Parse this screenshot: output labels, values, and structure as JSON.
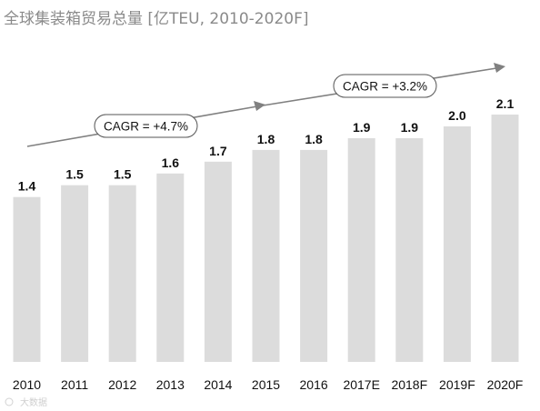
{
  "chart_data": {
    "type": "bar",
    "title": "全球集装箱贸易总量 [亿TEU, 2010-2020F]",
    "categories": [
      "2010",
      "2011",
      "2012",
      "2013",
      "2014",
      "2015",
      "2016",
      "2017E",
      "2018F",
      "2019F",
      "2020F"
    ],
    "values": [
      1.4,
      1.5,
      1.5,
      1.6,
      1.7,
      1.8,
      1.8,
      1.9,
      1.9,
      2.0,
      2.1
    ],
    "value_labels": [
      "1.4",
      "1.5",
      "1.5",
      "1.6",
      "1.7",
      "1.8",
      "1.8",
      "1.9",
      "1.9",
      "2.0",
      "2.1"
    ],
    "ylim": [
      0,
      2.1
    ],
    "grid": false,
    "bar_color": "#dcdcdc",
    "annotations": [
      {
        "text": "CAGR = +4.7%",
        "from": "2010",
        "to": "2016"
      },
      {
        "text": "CAGR = +3.2%",
        "from": "2016",
        "to": "2020F"
      }
    ]
  },
  "watermark": "大数据"
}
